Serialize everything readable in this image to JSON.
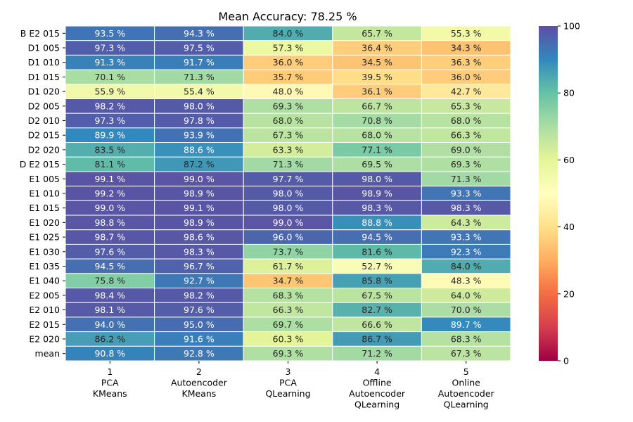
{
  "chart_data": {
    "type": "heatmap",
    "title": "Mean Accuracy: 78.25 %",
    "value_suffix": " %",
    "rows": [
      "B E2 015",
      "D1 005",
      "D1 010",
      "D1 015",
      "D1 020",
      "D2 005",
      "D2 010",
      "D2 015",
      "D2 020",
      "D E2 015",
      "E1 005",
      "E1 010",
      "E1 015",
      "E1 020",
      "E1 025",
      "E1 030",
      "E1 035",
      "E1 040",
      "E2 005",
      "E2 010",
      "E2 015",
      "E2 020",
      "mean"
    ],
    "columns": [
      {
        "index": "1",
        "lines": [
          "PCA",
          "KMeans"
        ]
      },
      {
        "index": "2",
        "lines": [
          "Autoencoder",
          "KMeans"
        ]
      },
      {
        "index": "3",
        "lines": [
          "PCA",
          "QLearning"
        ]
      },
      {
        "index": "4",
        "lines": [
          "Offline",
          "Autoencoder",
          "QLearning"
        ]
      },
      {
        "index": "5",
        "lines": [
          "Online",
          "Autoencoder",
          "QLearning"
        ]
      }
    ],
    "values": [
      [
        93.5,
        94.3,
        84.0,
        65.7,
        55.3
      ],
      [
        97.3,
        97.5,
        57.3,
        36.4,
        34.3
      ],
      [
        91.3,
        91.7,
        36.0,
        34.5,
        36.3
      ],
      [
        70.1,
        71.3,
        35.7,
        39.5,
        36.0
      ],
      [
        55.9,
        55.4,
        48.0,
        36.1,
        42.7
      ],
      [
        98.2,
        98.0,
        69.3,
        66.7,
        65.3
      ],
      [
        97.3,
        97.8,
        68.0,
        70.8,
        68.0
      ],
      [
        89.9,
        93.9,
        67.3,
        68.0,
        66.3
      ],
      [
        83.5,
        88.6,
        63.3,
        77.1,
        69.0
      ],
      [
        81.1,
        87.2,
        71.3,
        69.5,
        69.3
      ],
      [
        99.1,
        99.0,
        97.7,
        98.0,
        71.3
      ],
      [
        99.2,
        98.9,
        98.0,
        98.9,
        93.3
      ],
      [
        99.0,
        99.1,
        98.0,
        98.3,
        98.3
      ],
      [
        98.8,
        98.9,
        99.0,
        88.8,
        64.3
      ],
      [
        98.7,
        98.6,
        96.0,
        94.5,
        93.3
      ],
      [
        97.6,
        98.3,
        73.7,
        81.6,
        92.3
      ],
      [
        94.5,
        96.7,
        61.7,
        52.7,
        84.0
      ],
      [
        75.8,
        92.7,
        34.7,
        85.8,
        48.3
      ],
      [
        98.4,
        98.2,
        68.3,
        67.5,
        64.0
      ],
      [
        98.1,
        97.6,
        66.3,
        82.7,
        70.0
      ],
      [
        94.0,
        95.0,
        69.7,
        66.6,
        89.7
      ],
      [
        86.2,
        91.6,
        60.3,
        86.7,
        68.3
      ],
      [
        90.8,
        92.8,
        69.3,
        71.2,
        67.3
      ]
    ],
    "colorbar": {
      "colormap": "Spectral",
      "range": [
        0,
        100
      ],
      "ticks": [
        0,
        20,
        40,
        60,
        80,
        100
      ]
    },
    "vmin": 0,
    "vmax": 100
  }
}
